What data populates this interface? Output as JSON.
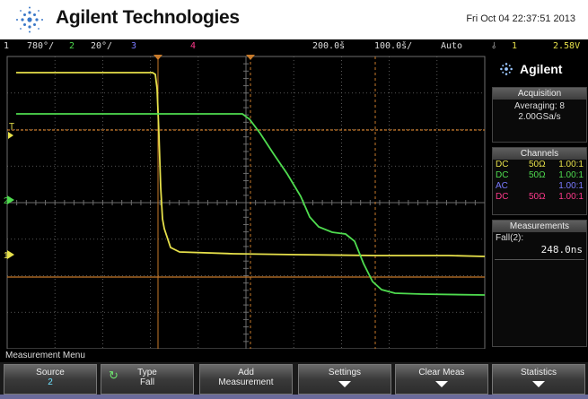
{
  "header": {
    "brand": "Agilent Technologies",
    "datetime": "Fri Oct 04 22:37:51 2013"
  },
  "status_bar": {
    "ch1_num": "1",
    "ch1_scale": "780°/",
    "ch2_num": "2",
    "ch2_scale": "20°/",
    "ch3_num": "3",
    "ch4_num": "4",
    "delay": "200.0š",
    "timebase": "100.0š/",
    "trigger_mode": "Auto",
    "trigger_ch": "1",
    "trigger_level": "2.58V"
  },
  "colors": {
    "ch1": "#e6e04a",
    "ch2": "#4fdc4f",
    "ch3": "#6060ff",
    "ch4": "#ff3a8c",
    "cursor": "#c87a2a",
    "grid": "#6e6e6e",
    "trace_bg": "#000000"
  },
  "sidebar": {
    "logo_text": "Agilent",
    "acquisition": {
      "title": "Acquisition",
      "mode": "Averaging: 8",
      "rate": "2.00GSa/s"
    },
    "channels": {
      "title": "Channels",
      "rows": [
        {
          "coupling": "DC",
          "impedance": "50Ω",
          "probe": "1.00:1",
          "color": "#e6e04a"
        },
        {
          "coupling": "DC",
          "impedance": "50Ω",
          "probe": "1.00:1",
          "color": "#4fdc4f"
        },
        {
          "coupling": "AC",
          "impedance": "",
          "probe": "1.00:1",
          "color": "#7a7aff"
        },
        {
          "coupling": "DC",
          "impedance": "50Ω",
          "probe": "1.00:1",
          "color": "#ff3a8c"
        }
      ]
    },
    "measurements": {
      "title": "Measurements",
      "label": "Fall(2):",
      "value": "248.0ns"
    }
  },
  "markers": {
    "trigger": "T",
    "ch2": "2",
    "ch1": "1"
  },
  "menu": {
    "title": "Measurement Menu",
    "keys": [
      {
        "label": "Source",
        "value": "2"
      },
      {
        "label": "Type",
        "value": "Fall"
      },
      {
        "label": "Add",
        "label2": "Measurement"
      },
      {
        "label": "Settings"
      },
      {
        "label": "Clear Meas"
      },
      {
        "label": "Statistics"
      }
    ]
  }
}
